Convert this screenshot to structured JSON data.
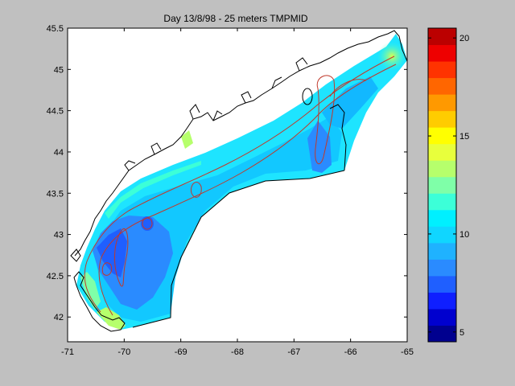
{
  "chart_data": {
    "type": "heatmap",
    "title": "Day 13/8/98 - 25 meters TMPMID",
    "xlabel": "",
    "ylabel": "",
    "xlim": [
      -71,
      -65
    ],
    "ylim": [
      41.7,
      45.5
    ],
    "x_ticks": [
      -71,
      -70,
      -69,
      -68,
      -67,
      -66,
      -65
    ],
    "x_tick_labels": [
      "-71",
      "-70",
      "-69",
      "-68",
      "-67",
      "-66",
      "-65"
    ],
    "y_ticks": [
      42,
      42.5,
      43,
      43.5,
      44,
      44.5,
      45,
      45.5
    ],
    "y_tick_labels": [
      "42",
      "42.5",
      "43",
      "43.5",
      "44",
      "44.5",
      "45",
      "45.5"
    ],
    "grid": false,
    "colorbar": {
      "vmin": 4.5,
      "vmax": 20.5,
      "ticks": [
        5,
        10,
        15,
        20
      ],
      "tick_labels": [
        "5",
        "10",
        "15",
        "20"
      ],
      "colors": [
        "#00008f",
        "#0000cf",
        "#0f1fff",
        "#1f5fff",
        "#2a8bff",
        "#1fb2ff",
        "#10d6ff",
        "#00f0ff",
        "#3cffd8",
        "#7fffa8",
        "#b6ff6c",
        "#e8ff3c",
        "#ffff00",
        "#ffcc00",
        "#ff9900",
        "#ff6600",
        "#ff3300",
        "#ee0000",
        "#bb0000"
      ]
    },
    "field": {
      "dominant_range": [
        9,
        11
      ],
      "cold_core": {
        "lon": -70.1,
        "lat": 42.9,
        "value": 8
      },
      "warm_coastal_edges": [
        {
          "lon": -70.7,
          "lat": 42.05,
          "value": 14
        },
        {
          "lon": -69.5,
          "lat": 44.1,
          "value": 14
        },
        {
          "lon": -65.5,
          "lat": 45.1,
          "value": 13
        }
      ]
    }
  }
}
